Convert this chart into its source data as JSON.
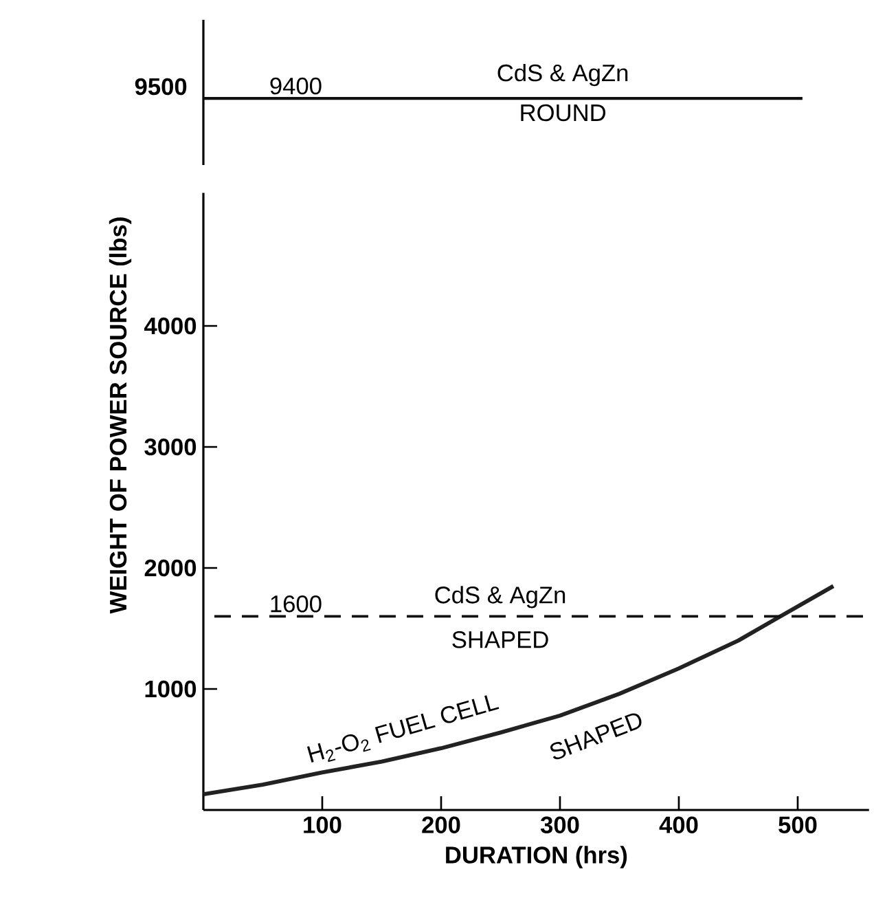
{
  "chart_data": [
    {
      "type": "other",
      "categories": [
        null
      ],
      "series": [
        {
          "color": "#111111",
          "values": [
            9400
          ],
          "value_labels": [
            "9400"
          ]
        }
      ],
      "annotations": [
        "9500",
        "CdS & AgZn",
        "ROUND"
      ]
    },
    {
      "type": "line",
      "xlabel": "DURATION (hrs)",
      "ylabel": "WEIGHT OF POWER SOURCE (lbs)",
      "xlim": [
        0,
        560
      ],
      "ylim": [
        0,
        5100
      ],
      "xticks": [
        100,
        200,
        300,
        400,
        500
      ],
      "yticks": [
        1000,
        2000,
        3000,
        4000
      ],
      "series": [
        {
          "color": "#222222",
          "x": [
            0,
            50,
            100,
            150,
            200,
            250,
            300,
            350,
            400,
            450,
            480,
            530
          ],
          "values": [
            130,
            210,
            310,
            400,
            510,
            640,
            780,
            960,
            1170,
            1400,
            1570,
            1850
          ]
        }
      ],
      "ref_lines": [
        {
          "axis": "y",
          "value": 1600,
          "label": "1600",
          "color": "#111111",
          "line_style": "dashed"
        }
      ],
      "annotations": [
        "CdS & AgZn",
        "SHAPED",
        "H$_{2}$-O$_{2}$ FUEL CELL",
        "SHAPED"
      ]
    }
  ]
}
